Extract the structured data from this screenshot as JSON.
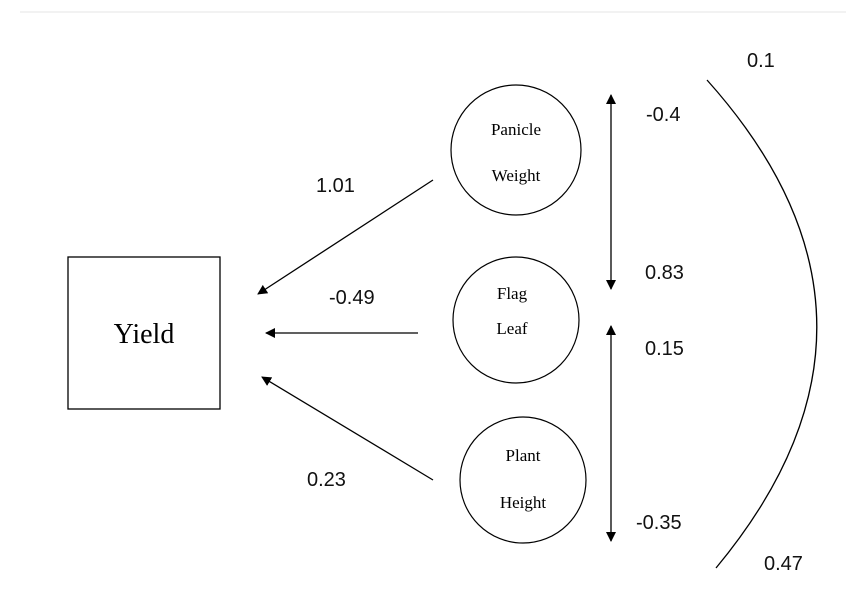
{
  "outcome": {
    "label": "Yield"
  },
  "predictors": [
    {
      "id": "panicle",
      "line1": "Panicle",
      "line2": "Weight"
    },
    {
      "id": "flag",
      "line1": "Flag",
      "line2": "Leaf"
    },
    {
      "id": "plant",
      "line1": "Plant",
      "line2": "Height"
    }
  ],
  "path_coefficients": {
    "panicle_to_yield": "1.01",
    "flag_to_yield": "-0.49",
    "plant_to_yield": "0.23"
  },
  "correlations": {
    "panicle_flag_upper": "-0.4",
    "panicle_flag_lower": "0.83",
    "flag_plant_upper": "0.15",
    "flag_plant_lower": "-0.35",
    "panicle_plant_upper": "0.1",
    "panicle_plant_lower": "0.47"
  }
}
